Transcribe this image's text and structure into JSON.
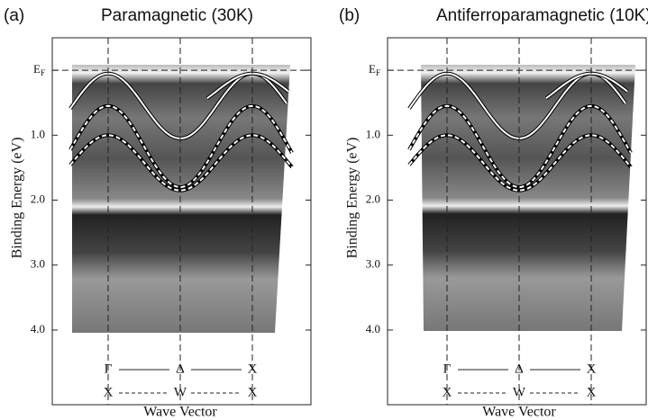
{
  "ylim": [
    -0.5,
    5.15
  ],
  "panels": [
    {
      "label": "(a)",
      "title": "Paramagnetic (30K)",
      "y_axis": {
        "label": "Binding Energy (eV)",
        "ticks": [
          {
            "value": 0,
            "label": "E",
            "sub": "F"
          },
          {
            "value": 1,
            "label": "1.0"
          },
          {
            "value": 2,
            "label": "2.0"
          },
          {
            "value": 3,
            "label": "3.0"
          },
          {
            "value": 4,
            "label": "4.0"
          }
        ]
      },
      "x_axis": {
        "label": "Wave Vector",
        "row1": [
          "Γ",
          "Δ",
          "X"
        ],
        "row2": [
          "X",
          "W",
          "X"
        ]
      }
    },
    {
      "label": "(b)",
      "title": "Antiferroparamagnetic (10K)",
      "y_axis": {
        "label": "Binding Energy (eV)",
        "ticks": [
          {
            "value": 0,
            "label": "E",
            "sub": "F"
          },
          {
            "value": 1,
            "label": "1.0"
          },
          {
            "value": 2,
            "label": "2.0"
          },
          {
            "value": 3,
            "label": "3.0"
          },
          {
            "value": 4,
            "label": "4.0"
          }
        ]
      },
      "x_axis": {
        "label": "Wave Vector",
        "row1": [
          "Γ",
          "Δ",
          "X"
        ],
        "row2": [
          "X",
          "W",
          "X"
        ]
      }
    }
  ]
}
